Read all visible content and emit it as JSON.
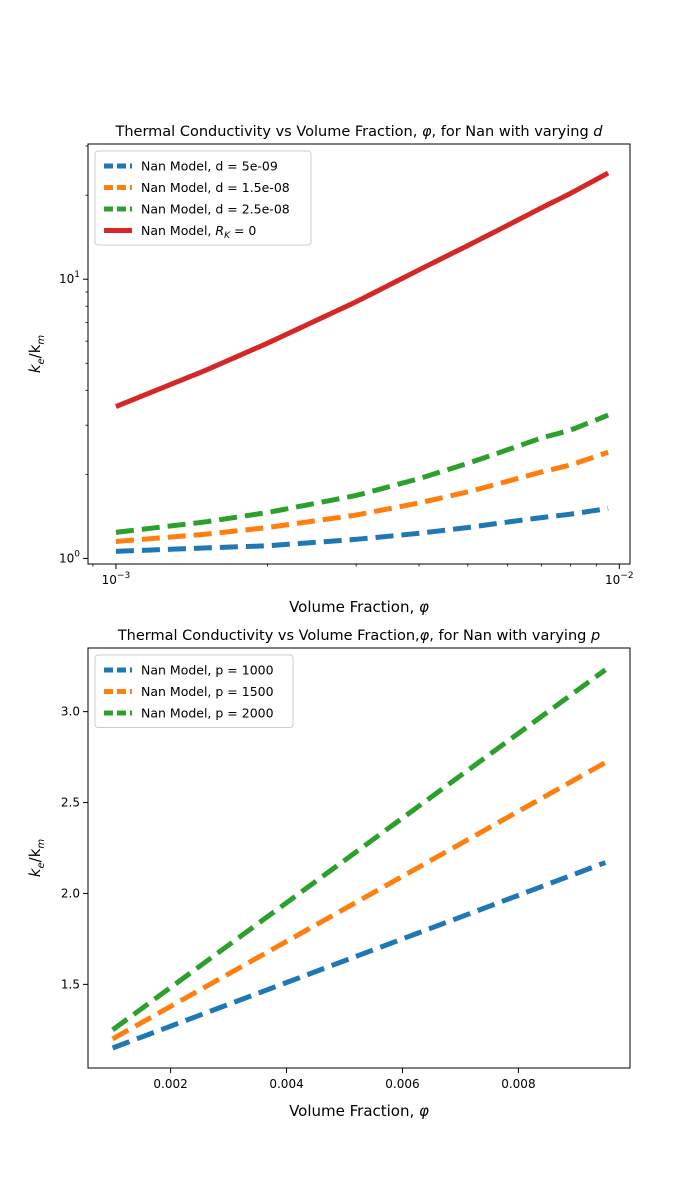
{
  "chart_data": [
    {
      "type": "line",
      "title_prefix": "Thermal Conductivity vs Volume Fraction, ",
      "title_symbol": "φ",
      "title_middle": ", for Nan with varying ",
      "title_var": "d",
      "xlabel_text": "Volume Fraction, ",
      "xlabel_symbol": "φ",
      "ylabel_k": "k",
      "ylabel_e": "e",
      "ylabel_slash": "/k",
      "ylabel_m": "m",
      "xscale": "log",
      "yscale": "log",
      "xlim": [
        0.00088,
        0.0105
      ],
      "ylim": [
        0.955,
        30.5
      ],
      "x_ticks": [
        {
          "value": 0.001,
          "base": "10",
          "exp": "−3"
        },
        {
          "value": 0.01,
          "base": "10",
          "exp": "−2"
        }
      ],
      "y_ticks": [
        {
          "value": 1,
          "base": "10",
          "exp": "0"
        },
        {
          "value": 10,
          "base": "10",
          "exp": "1"
        }
      ],
      "legend_position": "upper-left",
      "series": [
        {
          "name": "Nan Model, d = 5e-09",
          "color": "#1f77b4",
          "dashed": true,
          "x": [
            0.001,
            0.0015,
            0.002,
            0.003,
            0.004,
            0.005,
            0.006,
            0.007,
            0.008,
            0.0095
          ],
          "y": [
            1.06,
            1.09,
            1.11,
            1.17,
            1.23,
            1.29,
            1.35,
            1.4,
            1.44,
            1.51
          ]
        },
        {
          "name": "Nan Model, d = 1.5e-08",
          "color": "#ff7f0e",
          "dashed": true,
          "x": [
            0.001,
            0.0015,
            0.002,
            0.003,
            0.004,
            0.005,
            0.006,
            0.007,
            0.008,
            0.0095
          ],
          "y": [
            1.15,
            1.22,
            1.29,
            1.43,
            1.58,
            1.73,
            1.89,
            2.04,
            2.16,
            2.4
          ]
        },
        {
          "name": "Nan Model, d = 2.5e-08",
          "color": "#2ca02c",
          "dashed": true,
          "x": [
            0.001,
            0.0015,
            0.002,
            0.003,
            0.004,
            0.005,
            0.006,
            0.007,
            0.008,
            0.0095
          ],
          "y": [
            1.24,
            1.35,
            1.46,
            1.68,
            1.93,
            2.19,
            2.45,
            2.7,
            2.88,
            3.26
          ]
        },
        {
          "name_text": "Nan Model, ",
          "name_symbol": "R",
          "name_sub": "K",
          "name_tail": " = 0",
          "color": "#d62728",
          "dashed": false,
          "x": [
            0.001,
            0.0015,
            0.002,
            0.003,
            0.004,
            0.005,
            0.006,
            0.007,
            0.008,
            0.0095
          ],
          "y": [
            3.5,
            4.7,
            5.9,
            8.3,
            10.8,
            13.2,
            15.6,
            18.0,
            20.3,
            24.0
          ]
        }
      ]
    },
    {
      "type": "line",
      "title_prefix": "Thermal Conductivity vs Volume Fraction,",
      "title_symbol": "φ",
      "title_middle": ", for Nan with varying ",
      "title_var": "p",
      "xlabel_text": "Volume Fraction, ",
      "xlabel_symbol": "φ",
      "ylabel_k": "k",
      "ylabel_e": "e",
      "ylabel_slash": "/k",
      "ylabel_m": "m",
      "xscale": "linear",
      "yscale": "linear",
      "xlim": [
        0.000575,
        0.009925
      ],
      "ylim": [
        1.04,
        3.35
      ],
      "x_ticks": [
        {
          "value": 0.002,
          "label": "0.002"
        },
        {
          "value": 0.004,
          "label": "0.004"
        },
        {
          "value": 0.006,
          "label": "0.006"
        },
        {
          "value": 0.008,
          "label": "0.008"
        }
      ],
      "y_ticks": [
        {
          "value": 1.5,
          "label": "1.5"
        },
        {
          "value": 2.0,
          "label": "2.0"
        },
        {
          "value": 2.5,
          "label": "2.5"
        },
        {
          "value": 3.0,
          "label": "3.0"
        }
      ],
      "legend_position": "upper-left",
      "series": [
        {
          "name": "Nan Model, p = 1000",
          "color": "#1f77b4",
          "dashed": true,
          "x": [
            0.001,
            0.0095
          ],
          "y": [
            1.15,
            2.17
          ]
        },
        {
          "name": "Nan Model, p = 1500",
          "color": "#ff7f0e",
          "dashed": true,
          "x": [
            0.001,
            0.0095
          ],
          "y": [
            1.2,
            2.72
          ]
        },
        {
          "name": "Nan Model, p = 2000",
          "color": "#2ca02c",
          "dashed": true,
          "x": [
            0.001,
            0.0095
          ],
          "y": [
            1.25,
            3.23
          ]
        }
      ]
    }
  ]
}
